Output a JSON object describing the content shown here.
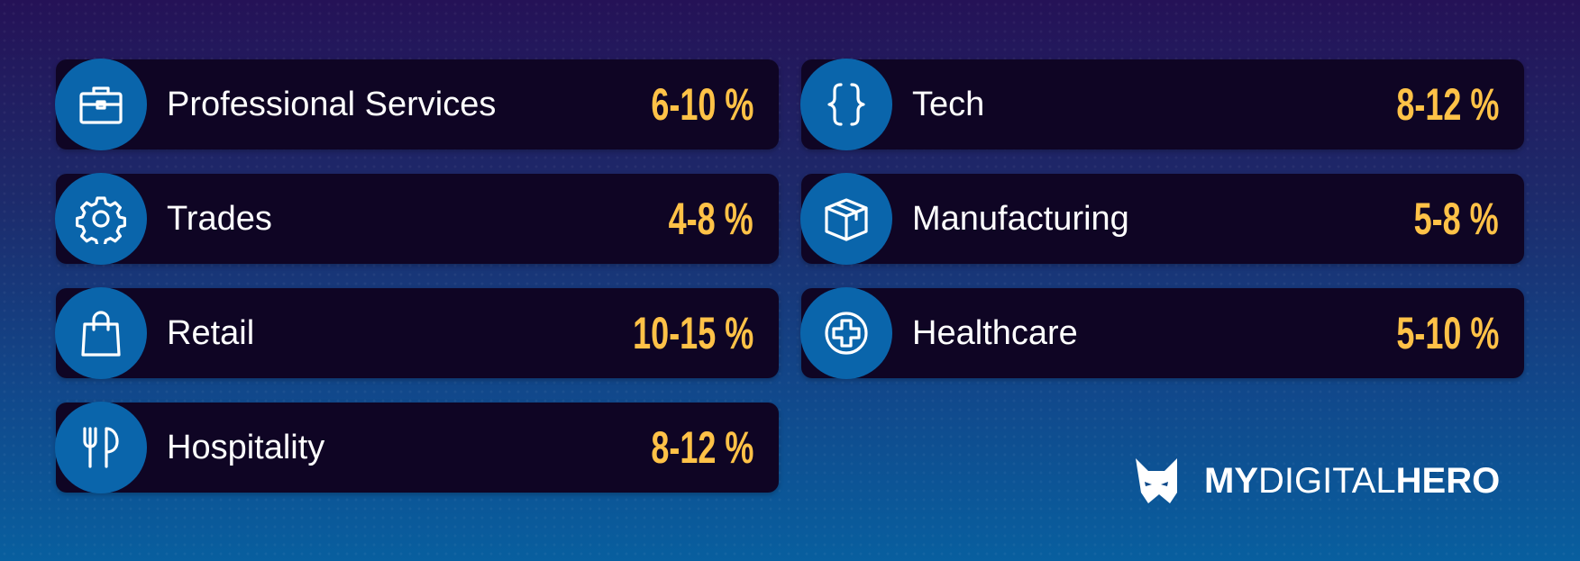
{
  "sectors": [
    {
      "label": "Professional Services",
      "value": "6-10 %",
      "icon": "briefcase-icon"
    },
    {
      "label": "Tech",
      "value": "8-12 %",
      "icon": "code-braces-icon"
    },
    {
      "label": "Trades",
      "value": "4-8 %",
      "icon": "gear-icon"
    },
    {
      "label": "Manufacturing",
      "value": "5-8 %",
      "icon": "box-icon"
    },
    {
      "label": "Retail",
      "value": "10-15 %",
      "icon": "shopping-bag-icon"
    },
    {
      "label": "Healthcare",
      "value": "5-10 %",
      "icon": "medical-cross-icon"
    },
    {
      "label": "Hospitality",
      "value": "8-12 %",
      "icon": "fork-knife-icon"
    }
  ],
  "logo": {
    "part1": "MY",
    "part2": "DIGITAL",
    "part3": "HERO"
  },
  "colors": {
    "card_bg": "#0f0524",
    "badge": "#0a65ab",
    "value": "#ffc247",
    "text": "#ffffff"
  }
}
